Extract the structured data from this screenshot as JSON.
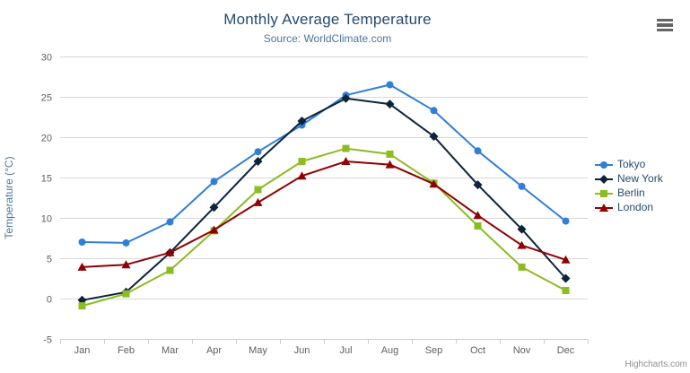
{
  "chart": {
    "title": "Monthly Average Temperature",
    "subtitle": "Source: WorldClimate.com",
    "credits": "Highcharts.com",
    "context_menu_icon": "hamburger-icon"
  },
  "colors": {
    "title": "#274b6d",
    "subtitle": "#4d759e",
    "axis_label": "#606060",
    "axis_title": "#4d759e",
    "gridline": "#d8d8d8",
    "axis_line": "#c0d0e0",
    "legend_text": "#274b6d",
    "credits_text": "#909090",
    "menu_icon": "#666666"
  },
  "chart_data": {
    "type": "line",
    "title": "Monthly Average Temperature",
    "subtitle": "Source: WorldClimate.com",
    "categories": [
      "Jan",
      "Feb",
      "Mar",
      "Apr",
      "May",
      "Jun",
      "Jul",
      "Aug",
      "Sep",
      "Oct",
      "Nov",
      "Dec"
    ],
    "series": [
      {
        "name": "Tokyo",
        "color": "#2f7ed8",
        "marker": "circle",
        "values": [
          7.0,
          6.9,
          9.5,
          14.5,
          18.2,
          21.5,
          25.2,
          26.5,
          23.3,
          18.3,
          13.9,
          9.6
        ]
      },
      {
        "name": "New York",
        "color": "#0d233a",
        "marker": "diamond",
        "values": [
          -0.2,
          0.8,
          5.7,
          11.3,
          17.0,
          22.0,
          24.8,
          24.1,
          20.1,
          14.1,
          8.6,
          2.5
        ]
      },
      {
        "name": "Berlin",
        "color": "#8bbc21",
        "marker": "square",
        "values": [
          -0.9,
          0.6,
          3.5,
          8.4,
          13.5,
          17.0,
          18.6,
          17.9,
          14.3,
          9.0,
          3.9,
          1.0
        ]
      },
      {
        "name": "London",
        "color": "#910000",
        "marker": "triangle",
        "values": [
          3.9,
          4.2,
          5.7,
          8.5,
          11.9,
          15.2,
          17.0,
          16.6,
          14.2,
          10.3,
          6.6,
          4.8
        ]
      }
    ],
    "xlabel": "",
    "ylabel": "Temperature (°C)",
    "ylim": [
      -5,
      30
    ],
    "ytick_interval": 5,
    "grid": "horizontal",
    "legend_position": "right-middle"
  }
}
